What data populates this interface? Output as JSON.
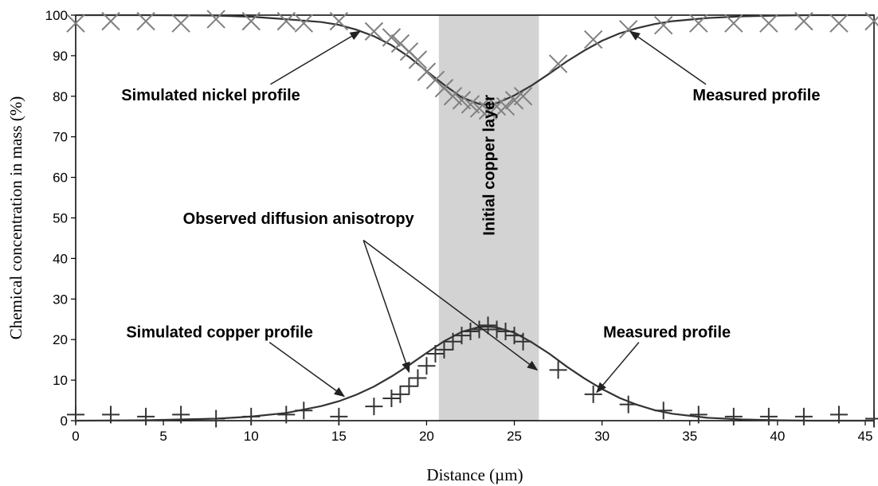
{
  "chart_data": {
    "type": "line",
    "title": "",
    "xlabel": "Distance (µm)",
    "ylabel": "Chemical concentration in mass (%)",
    "xlim": [
      0,
      45.5
    ],
    "ylim": [
      0,
      100
    ],
    "xticks": [
      0,
      5,
      10,
      15,
      20,
      25,
      30,
      35,
      40,
      45
    ],
    "yticks": [
      0,
      10,
      20,
      30,
      40,
      50,
      60,
      70,
      80,
      90,
      100
    ],
    "grid": false,
    "legend": "none",
    "shaded_region": {
      "x_start": 20.7,
      "x_end": 26.4,
      "label": "Initial copper layer",
      "color": "#d3d3d3"
    },
    "series": [
      {
        "kind": "line",
        "color": "#333333",
        "x": [
          0,
          4,
          8,
          10,
          12,
          14,
          15,
          16,
          17,
          18,
          19,
          20,
          21,
          22,
          23,
          23.5,
          24,
          25,
          26,
          27,
          28,
          29,
          30,
          31,
          32,
          33,
          34,
          36,
          38,
          40,
          42,
          45.5
        ],
        "y": [
          100,
          100,
          99.9,
          99.6,
          99.0,
          98.3,
          97.6,
          96.4,
          94.8,
          92.6,
          89.7,
          86.2,
          82.8,
          79.7,
          78.1,
          77.9,
          78.3,
          80.2,
          82.7,
          85.6,
          88.6,
          91.3,
          93.7,
          95.5,
          96.8,
          97.8,
          98.5,
          99.3,
          99.7,
          99.9,
          100,
          100
        ]
      },
      {
        "kind": "markers",
        "marker": "x",
        "color": "#808080",
        "x": [
          0,
          2,
          4,
          6,
          8,
          10,
          12,
          13,
          15,
          17,
          18,
          18.5,
          19,
          19.5,
          20,
          20.5,
          21,
          21.5,
          22,
          22.5,
          23,
          23.5,
          24,
          24.5,
          25,
          25.5,
          27.5,
          29.5,
          31.5,
          33.5,
          35.5,
          37.5,
          39.5,
          41.5,
          43.5,
          45.5
        ],
        "y": [
          98,
          98.5,
          98.5,
          98,
          99,
          98.5,
          98.5,
          98,
          98.5,
          96,
          94.5,
          93,
          91,
          89,
          86,
          84,
          82,
          80,
          79,
          78,
          77,
          76.5,
          77.5,
          77.5,
          79,
          80,
          88,
          94,
          96.5,
          97.5,
          98,
          98,
          98,
          98.5,
          98,
          98.5
        ]
      },
      {
        "kind": "line",
        "color": "#333333",
        "x": [
          0,
          4,
          8,
          10,
          12,
          14,
          15,
          16,
          17,
          18,
          19,
          20,
          21,
          22,
          23,
          23.5,
          24,
          25,
          26,
          27,
          28,
          29,
          30,
          31,
          32,
          33,
          34,
          36,
          38,
          40,
          42,
          45.5
        ],
        "y": [
          0,
          0.1,
          0.5,
          1.0,
          1.9,
          3.6,
          4.8,
          6.4,
          8.4,
          10.9,
          13.7,
          16.7,
          19.6,
          21.9,
          23.1,
          23.2,
          23.0,
          21.7,
          19.3,
          16.5,
          13.3,
          10.4,
          7.8,
          5.6,
          3.9,
          2.6,
          1.7,
          0.7,
          0.3,
          0.1,
          0,
          0
        ]
      },
      {
        "kind": "markers",
        "marker": "plus",
        "color": "#333333",
        "x": [
          0,
          2,
          4,
          6,
          8,
          10,
          12,
          13,
          15,
          17,
          18,
          18.5,
          19,
          19.5,
          20,
          20.5,
          21,
          21.5,
          22,
          22.5,
          23,
          23.5,
          24,
          24.5,
          25,
          25.5,
          27.5,
          29.5,
          31.5,
          33.5,
          35.5,
          37.5,
          39.5,
          41.5,
          43.5,
          45.5
        ],
        "y": [
          1.5,
          1.5,
          1,
          1.5,
          0.5,
          1,
          1.5,
          2.5,
          1,
          3.5,
          5.5,
          6.5,
          8.5,
          10.5,
          13.5,
          16.5,
          17.5,
          19.5,
          21,
          22,
          22.5,
          23.5,
          22.5,
          22,
          21,
          19.5,
          12.5,
          6.5,
          4,
          2.5,
          1.5,
          1,
          1,
          1,
          1.5,
          0.5
        ]
      }
    ],
    "annotations": [
      {
        "text": "Simulated nickel profile",
        "x": 7.7,
        "y": 79,
        "arrow_to": [
          16.2,
          96
        ]
      },
      {
        "text": "Measured profile",
        "x": 38.8,
        "y": 79,
        "arrow_to": [
          31.6,
          96
        ]
      },
      {
        "text": "Observed diffusion anisotropy",
        "x": 12.7,
        "y": 48.5,
        "arrow_to": [
          [
            19,
            12
          ],
          [
            26.3,
            12.5
          ]
        ]
      },
      {
        "text": "Simulated copper profile",
        "x": 8.2,
        "y": 20.5,
        "arrow_to": [
          15.3,
          6
        ]
      },
      {
        "text": "Measured profile",
        "x": 33.7,
        "y": 20.5,
        "arrow_to": [
          29.7,
          7
        ]
      }
    ]
  }
}
